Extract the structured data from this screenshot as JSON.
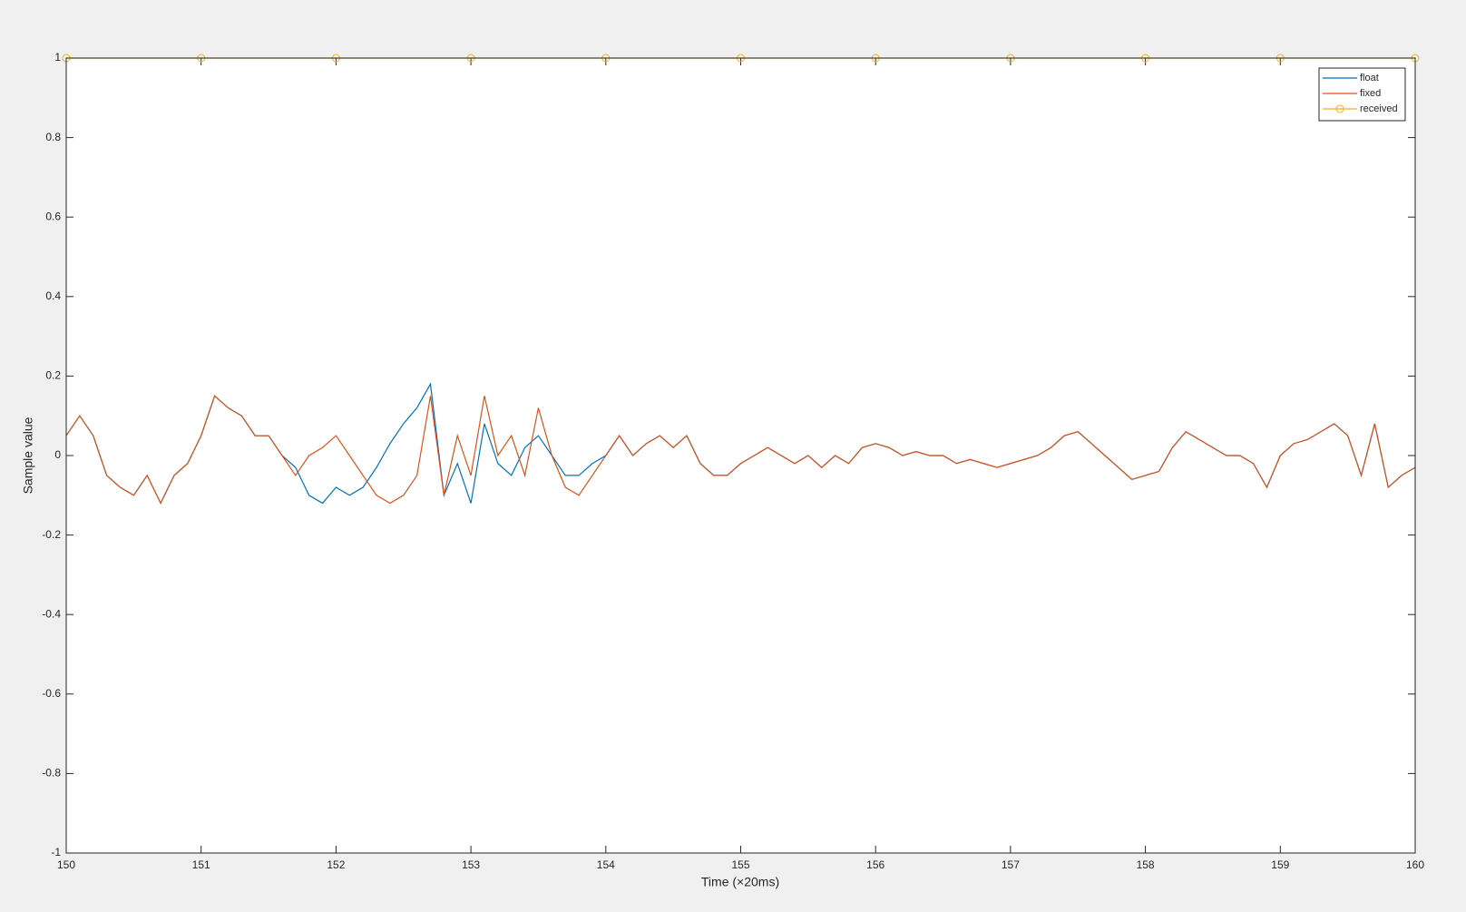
{
  "chart_data": {
    "type": "line",
    "xlabel": "Time (×20ms)",
    "ylabel": "Sample value",
    "x": [
      150,
      150.1,
      150.2,
      150.3,
      150.4,
      150.5,
      150.6,
      150.7,
      150.8,
      150.9,
      151,
      151.1,
      151.2,
      151.3,
      151.4,
      151.5,
      151.6,
      151.7,
      151.8,
      151.9,
      152,
      152.1,
      152.2,
      152.3,
      152.4,
      152.5,
      152.6,
      152.7,
      152.8,
      152.9,
      153,
      153.1,
      153.2,
      153.3,
      153.4,
      153.5,
      153.6,
      153.7,
      153.8,
      153.9,
      154,
      154.1,
      154.2,
      154.3,
      154.4,
      154.5,
      154.6,
      154.7,
      154.8,
      154.9,
      155,
      155.1,
      155.2,
      155.3,
      155.4,
      155.5,
      155.6,
      155.7,
      155.8,
      155.9,
      156,
      156.1,
      156.2,
      156.3,
      156.4,
      156.5,
      156.6,
      156.7,
      156.8,
      156.9,
      157,
      157.1,
      157.2,
      157.3,
      157.4,
      157.5,
      157.6,
      157.7,
      157.8,
      157.9,
      158,
      158.1,
      158.2,
      158.3,
      158.4,
      158.5,
      158.6,
      158.7,
      158.8,
      158.9,
      159,
      159.1,
      159.2,
      159.3,
      159.4,
      159.5,
      159.6,
      159.7,
      159.8,
      159.9,
      160
    ],
    "series": [
      {
        "name": "float",
        "color": "#0072bd",
        "values": [
          0.05,
          0.1,
          0.05,
          -0.05,
          -0.08,
          -0.1,
          -0.05,
          -0.12,
          -0.05,
          -0.02,
          0.05,
          0.15,
          0.12,
          0.1,
          0.05,
          0.05,
          0,
          -0.03,
          -0.1,
          -0.12,
          -0.08,
          -0.1,
          -0.08,
          -0.03,
          0.03,
          0.08,
          0.12,
          0.18,
          -0.1,
          -0.02,
          -0.12,
          0.08,
          -0.02,
          -0.05,
          0.02,
          0.05,
          0,
          -0.05,
          -0.05,
          -0.02,
          0,
          0.05,
          0,
          0.03,
          0.05,
          0.02,
          0.05,
          -0.02,
          -0.05,
          -0.05,
          -0.02,
          0,
          0.02,
          0,
          -0.02,
          0,
          -0.03,
          0,
          -0.02,
          0.02,
          0.03,
          0.02,
          0,
          0.01,
          0,
          0,
          -0.02,
          -0.01,
          -0.02,
          -0.03,
          -0.02,
          -0.01,
          0,
          0.02,
          0.05,
          0.06,
          0.03,
          0,
          -0.03,
          -0.06,
          -0.05,
          -0.04,
          0.02,
          0.06,
          0.04,
          0.02,
          0,
          0,
          -0.02,
          -0.08,
          0,
          0.03,
          0.04,
          0.06,
          0.08,
          0.05,
          -0.05,
          0.08,
          -0.08,
          -0.05,
          -0.03
        ]
      },
      {
        "name": "fixed",
        "color": "#d95319",
        "values": [
          0.05,
          0.1,
          0.05,
          -0.05,
          -0.08,
          -0.1,
          -0.05,
          -0.12,
          -0.05,
          -0.02,
          0.05,
          0.15,
          0.12,
          0.1,
          0.05,
          0.05,
          0,
          -0.05,
          0,
          0.02,
          0.05,
          0,
          -0.05,
          -0.1,
          -0.12,
          -0.1,
          -0.05,
          0.15,
          -0.1,
          0.05,
          -0.05,
          0.15,
          0,
          0.05,
          -0.05,
          0.12,
          0,
          -0.08,
          -0.1,
          -0.05,
          0,
          0.05,
          0,
          0.03,
          0.05,
          0.02,
          0.05,
          -0.02,
          -0.05,
          -0.05,
          -0.02,
          0,
          0.02,
          0,
          -0.02,
          0,
          -0.03,
          0,
          -0.02,
          0.02,
          0.03,
          0.02,
          0,
          0.01,
          0,
          0,
          -0.02,
          -0.01,
          -0.02,
          -0.03,
          -0.02,
          -0.01,
          0,
          0.02,
          0.05,
          0.06,
          0.03,
          0,
          -0.03,
          -0.06,
          -0.05,
          -0.04,
          0.02,
          0.06,
          0.04,
          0.02,
          0,
          0,
          -0.02,
          -0.08,
          0,
          0.03,
          0.04,
          0.06,
          0.08,
          0.05,
          -0.05,
          0.08,
          -0.08,
          -0.05,
          -0.03
        ]
      },
      {
        "name": "received",
        "color": "#edb120",
        "marker": "circle",
        "x": [
          150,
          151,
          152,
          153,
          154,
          155,
          156,
          157,
          158,
          159,
          160
        ],
        "values": [
          1,
          1,
          1,
          1,
          1,
          1,
          1,
          1,
          1,
          1,
          1
        ]
      }
    ],
    "xlim": [
      150,
      160
    ],
    "xticks": [
      150,
      151,
      152,
      153,
      154,
      155,
      156,
      157,
      158,
      159,
      160
    ],
    "ylim": [
      -1,
      1
    ],
    "yticks": [
      -1,
      -0.8,
      -0.6,
      -0.4,
      -0.2,
      0,
      0.2,
      0.4,
      0.6,
      0.8,
      1
    ],
    "grid": false,
    "legend": "northeast"
  }
}
